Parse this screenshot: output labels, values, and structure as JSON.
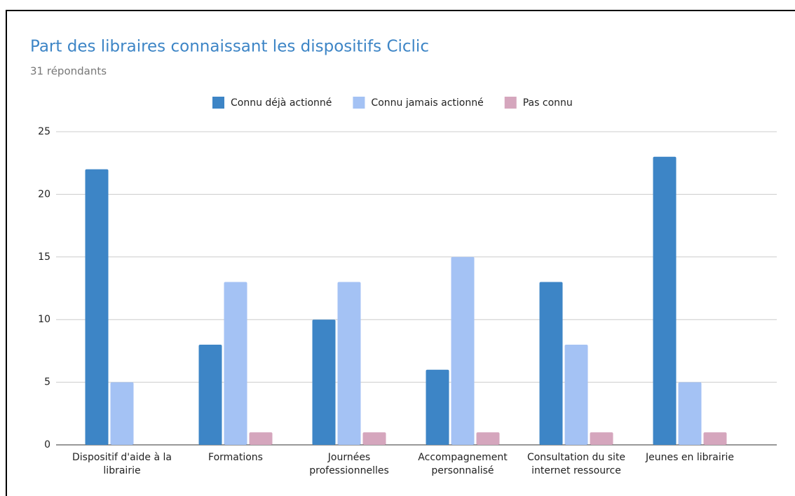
{
  "chart_data": {
    "type": "bar",
    "title": "Part des libraires connaissant les dispositifs Ciclic",
    "subtitle": "31 répondants",
    "categories": [
      "Dispositif d'aide à la librairie",
      "Formations",
      "Journées professionnelles",
      "Accompagnement personnalisé",
      "Consultation du site internet ressource",
      "Jeunes en librairie"
    ],
    "series": [
      {
        "name": "Connu déjà actionné",
        "color": "#3d85c6",
        "values": [
          22,
          8,
          10,
          6,
          13,
          23
        ]
      },
      {
        "name": "Connu jamais actionné",
        "color": "#a4c2f4",
        "values": [
          5,
          13,
          13,
          15,
          8,
          5
        ]
      },
      {
        "name": "Pas connu",
        "color": "#d5a6bd",
        "values": [
          0,
          1,
          1,
          1,
          1,
          1
        ]
      }
    ],
    "ylim": [
      0,
      25
    ],
    "yticks": [
      0,
      5,
      10,
      15,
      20,
      25
    ],
    "grid": true
  }
}
